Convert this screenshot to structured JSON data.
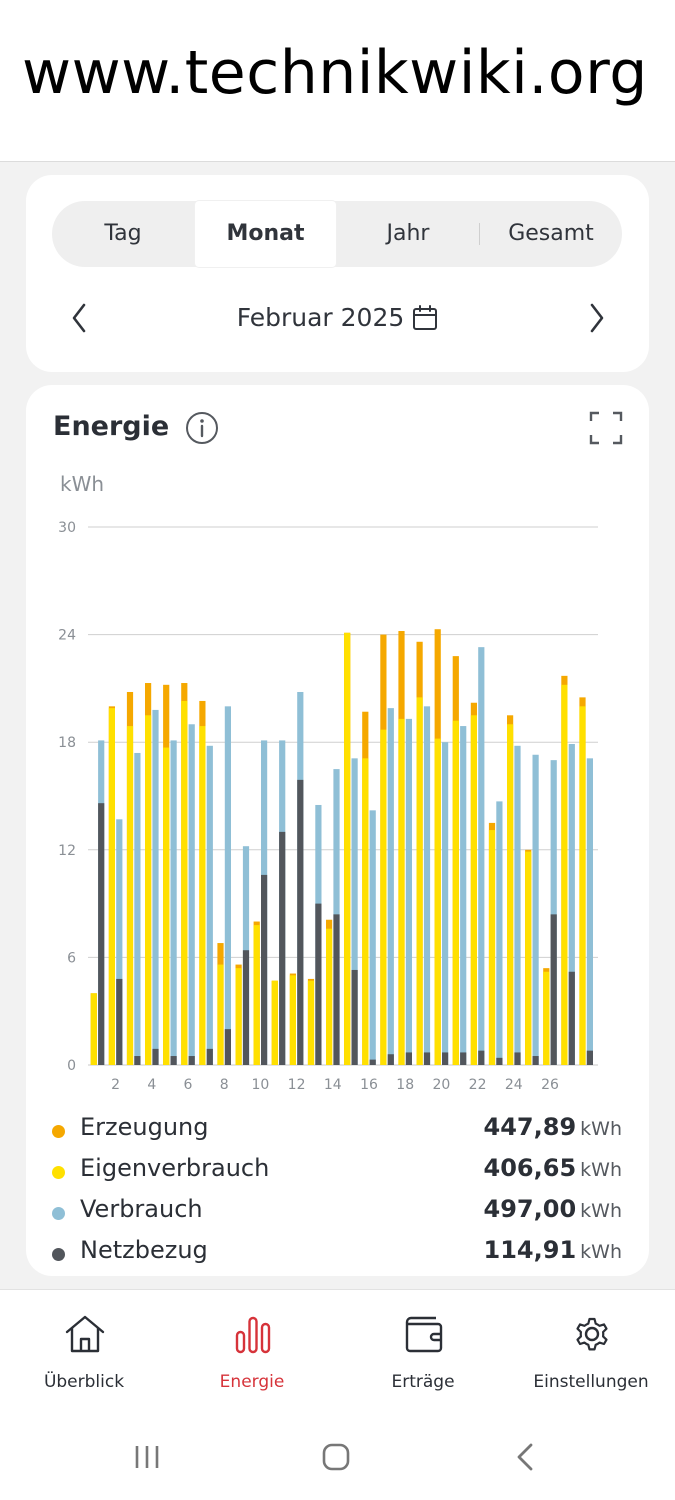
{
  "watermark": "www.technikwiki.org",
  "tabs": [
    {
      "label": "Tag",
      "active": false
    },
    {
      "label": "Monat",
      "active": true
    },
    {
      "label": "Jahr",
      "active": false
    },
    {
      "label": "Gesamt",
      "active": false
    }
  ],
  "period": {
    "label": "Februar 2025"
  },
  "energy": {
    "title": "Energie",
    "unit": "kWh"
  },
  "colors": {
    "erzeugung": "#f5a800",
    "eigenverbrauch": "#ffe000",
    "verbrauch": "#8fbfd6",
    "netzbezug": "#52565c",
    "accent": "#d6333a"
  },
  "chart_data": {
    "type": "bar",
    "ylabel": "kWh",
    "ylim": [
      0,
      30
    ],
    "yticks": [
      0,
      6,
      12,
      18,
      24,
      30
    ],
    "categories": [
      1,
      2,
      3,
      4,
      5,
      6,
      7,
      8,
      9,
      10,
      11,
      12,
      13,
      14,
      15,
      16,
      17,
      18,
      19,
      20,
      21,
      22,
      23,
      24,
      25,
      26,
      27,
      28
    ],
    "xtick_labels": [
      "2",
      "4",
      "6",
      "8",
      "10",
      "12",
      "14",
      "16",
      "18",
      "20",
      "22",
      "24",
      "26"
    ],
    "xtick_positions": [
      2,
      4,
      6,
      8,
      10,
      12,
      14,
      16,
      18,
      20,
      22,
      24,
      26
    ],
    "grid": true,
    "series": [
      {
        "name": "Erzeugung",
        "values": [
          4.0,
          20.0,
          20.8,
          21.3,
          21.2,
          21.3,
          20.3,
          6.8,
          5.6,
          8.0,
          4.7,
          5.1,
          4.8,
          8.1,
          24.1,
          19.7,
          24.0,
          24.2,
          23.6,
          24.3,
          22.8,
          20.2,
          13.5,
          19.5,
          12.0,
          5.4,
          21.7,
          20.5
        ]
      },
      {
        "name": "Eigenverbrauch",
        "values": [
          4.0,
          19.9,
          18.9,
          19.5,
          17.7,
          20.3,
          18.9,
          5.6,
          5.4,
          7.8,
          4.7,
          5.0,
          4.7,
          7.6,
          24.1,
          17.1,
          18.7,
          19.3,
          20.5,
          18.2,
          19.2,
          19.5,
          13.1,
          19.0,
          11.9,
          5.2,
          21.2,
          20.0
        ]
      },
      {
        "name": "Verbrauch",
        "values": [
          18.1,
          13.7,
          17.4,
          19.8,
          18.1,
          19.0,
          17.8,
          20.0,
          12.2,
          18.1,
          18.1,
          20.8,
          14.5,
          16.5,
          17.1,
          14.2,
          19.9,
          19.3,
          20.0,
          18.0,
          18.9,
          23.3,
          14.7,
          17.8,
          17.3,
          17.0,
          17.9,
          17.1
        ]
      },
      {
        "name": "Netzbezug",
        "values": [
          14.6,
          4.8,
          0.5,
          0.9,
          0.5,
          0.5,
          0.9,
          2.0,
          6.4,
          10.6,
          13.0,
          15.9,
          9.0,
          8.4,
          5.3,
          0.3,
          0.6,
          0.7,
          0.7,
          0.7,
          0.7,
          0.8,
          0.4,
          0.7,
          0.5,
          8.4,
          5.2,
          0.8
        ]
      }
    ]
  },
  "legend": [
    {
      "name": "Erzeugung",
      "value": "447,89",
      "unit": "kWh",
      "color": "#f5a800"
    },
    {
      "name": "Eigenverbrauch",
      "value": "406,65",
      "unit": "kWh",
      "color": "#ffe000"
    },
    {
      "name": "Verbrauch",
      "value": "497,00",
      "unit": "kWh",
      "color": "#8fbfd6"
    },
    {
      "name": "Netzbezug",
      "value": "114,91",
      "unit": "kWh",
      "color": "#52565c"
    }
  ],
  "bottom_nav": [
    {
      "label": "Überblick",
      "icon": "home-icon",
      "active": false
    },
    {
      "label": "Energie",
      "icon": "bar-chart-icon",
      "active": true
    },
    {
      "label": "Erträge",
      "icon": "wallet-icon",
      "active": false
    },
    {
      "label": "Einstellungen",
      "icon": "gear-icon",
      "active": false
    }
  ],
  "system_bar": [
    "recent-apps-icon",
    "home-circle-icon",
    "back-icon"
  ]
}
